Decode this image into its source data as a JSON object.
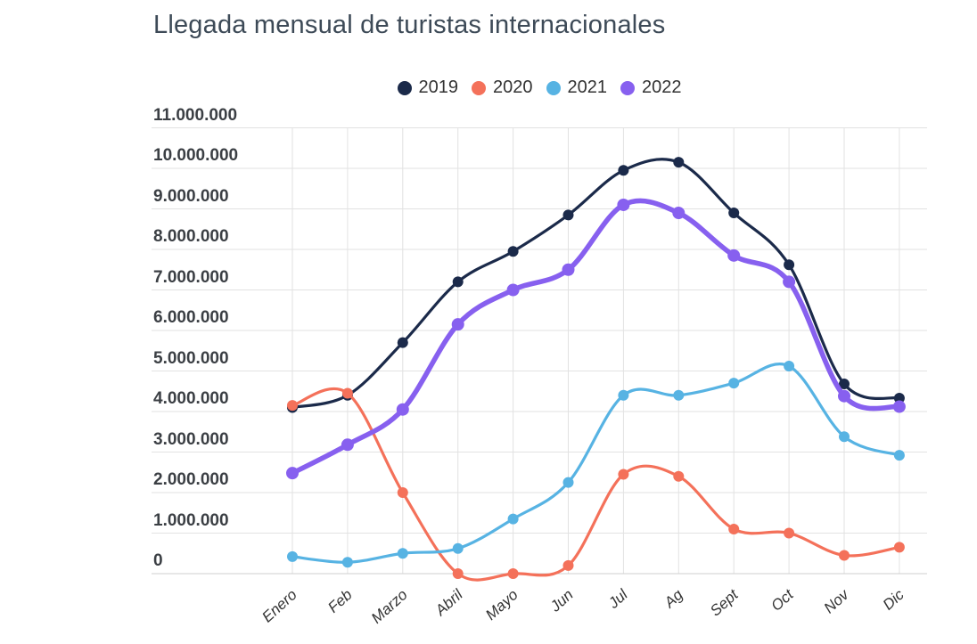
{
  "chart": {
    "title": "Llegada mensual de turistas internacionales"
  },
  "chart_data": {
    "type": "line",
    "title": "Llegada mensual de turistas internacionales",
    "xlabel": "",
    "ylabel": "",
    "categories": [
      "Enero",
      "Feb",
      "Marzo",
      "Abril",
      "Mayo",
      "Jun",
      "Jul",
      "Ag",
      "Sept",
      "Oct",
      "Nov",
      "Dic"
    ],
    "series": [
      {
        "name": "2019",
        "color": "#1b2a4a",
        "line_width": 3.2,
        "marker_radius": 6,
        "values": [
          4100000,
          4400000,
          5700000,
          7200000,
          7950000,
          8850000,
          9950000,
          10150000,
          8900000,
          7620000,
          4680000,
          4330000
        ]
      },
      {
        "name": "2020",
        "color": "#f4715a",
        "line_width": 3.2,
        "marker_radius": 6,
        "values": [
          4150000,
          4450000,
          2000000,
          0,
          0,
          200000,
          2450000,
          2400000,
          1100000,
          1000000,
          450000,
          650000
        ]
      },
      {
        "name": "2021",
        "color": "#57b3e3",
        "line_width": 3.2,
        "marker_radius": 6,
        "values": [
          420000,
          280000,
          500000,
          620000,
          1350000,
          2250000,
          4400000,
          4400000,
          4700000,
          5120000,
          3380000,
          2920000
        ]
      },
      {
        "name": "2022",
        "color": "#8760ef",
        "line_width": 5.6,
        "marker_radius": 7,
        "values": [
          2480000,
          3180000,
          4050000,
          6150000,
          7000000,
          7500000,
          9100000,
          8900000,
          7850000,
          7200000,
          4380000,
          4120000
        ]
      }
    ],
    "ylim": [
      0,
      11000000
    ],
    "y_tick_step": 1000000,
    "y_tick_labels": [
      "0",
      "1.000.000",
      "2.000.000",
      "3.000.000",
      "4.000.000",
      "5.000.000",
      "6.000.000",
      "7.000.000",
      "8.000.000",
      "9.000.000",
      "10.000.000",
      "11.000.000"
    ],
    "grid": "both",
    "grid_color": "#e2e2e2",
    "zero_line_color": "#cfcfcf",
    "legend_position": "top",
    "marker": "circle"
  }
}
